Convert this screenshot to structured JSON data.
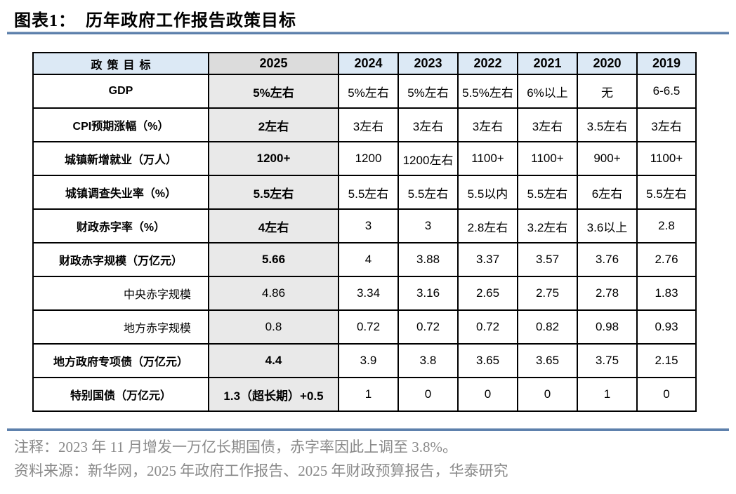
{
  "title": "图表1：  历年政府工作报告政策目标",
  "table": {
    "columns": [
      "政策目标",
      "2025",
      "2024",
      "2023",
      "2022",
      "2021",
      "2020",
      "2019"
    ],
    "rows": [
      {
        "label": "GDP",
        "sub": false,
        "values": [
          "5%左右",
          "5%左右",
          "5%左右",
          "5.5%左右",
          "6%以上",
          "无",
          "6-6.5"
        ]
      },
      {
        "label": "CPI预期涨幅（%）",
        "sub": false,
        "values": [
          "2左右",
          "3左右",
          "3左右",
          "3左右",
          "3左右",
          "3.5左右",
          "3左右"
        ]
      },
      {
        "label": "城镇新增就业（万人）",
        "sub": false,
        "values": [
          "1200+",
          "1200",
          "1200左右",
          "1100+",
          "1100+",
          "900+",
          "1100+"
        ]
      },
      {
        "label": "城镇调查失业率（%）",
        "sub": false,
        "values": [
          "5.5左右",
          "5.5左右",
          "5.5左右",
          "5.5以内",
          "5.5左右",
          "6左右",
          "5.5左右"
        ]
      },
      {
        "label": "财政赤字率（%）",
        "sub": false,
        "values": [
          "4左右",
          "3",
          "3",
          "2.8左右",
          "3.2左右",
          "3.6以上",
          "2.8"
        ]
      },
      {
        "label": "财政赤字规模（万亿元）",
        "sub": false,
        "values": [
          "5.66",
          "4",
          "3.88",
          "3.37",
          "3.57",
          "3.76",
          "2.76"
        ]
      },
      {
        "label": "中央赤字规模",
        "sub": true,
        "values": [
          "4.86",
          "3.34",
          "3.16",
          "2.65",
          "2.75",
          "2.78",
          "1.83"
        ]
      },
      {
        "label": "地方赤字规模",
        "sub": true,
        "values": [
          "0.8",
          "0.72",
          "0.72",
          "0.72",
          "0.82",
          "0.98",
          "0.93"
        ]
      },
      {
        "label": "地方政府专项债（万亿元）",
        "sub": false,
        "values": [
          "4.4",
          "3.9",
          "3.8",
          "3.65",
          "3.65",
          "3.75",
          "2.15"
        ]
      },
      {
        "label": "特别国债（万亿元）",
        "sub": false,
        "values": [
          "1.3（超长期）+0.5",
          "1",
          "0",
          "0",
          "0",
          "1",
          "0"
        ]
      }
    ]
  },
  "notes": {
    "annotation": "注释：2023 年 11 月增发一万亿长期国债，赤字率因此上调至 3.8%。",
    "source": "资料来源：新华网，2025 年政府工作报告、2025 年财政预算报告，华泰研究"
  },
  "colors": {
    "header_blue": "#dce9f5",
    "header_2025_gray": "#dcdcdc",
    "column_2025_gray": "#e9e9e9",
    "divider_blue": "#5d80ac",
    "note_gray": "#8a8a8a",
    "table_border": "#000000"
  }
}
